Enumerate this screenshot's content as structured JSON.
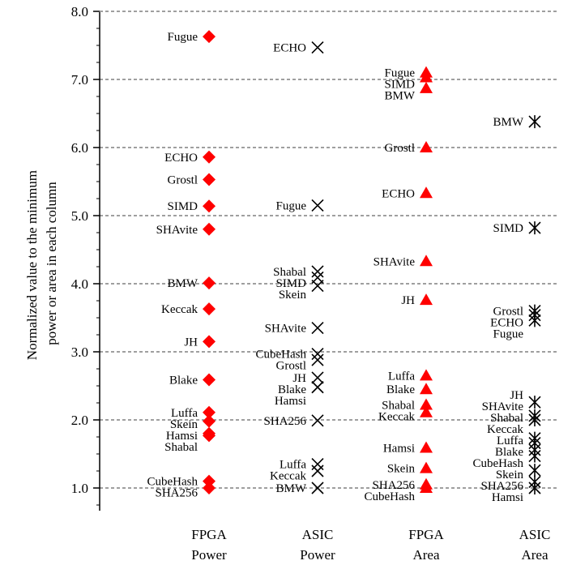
{
  "chart_data": {
    "type": "scatter",
    "title": "",
    "xlabel": "",
    "ylabel_lines": [
      "Normalized value to the minimum",
      "power or area in each column"
    ],
    "ylim": [
      0.75,
      8.0
    ],
    "yticks": [
      "1.0",
      "2.0",
      "3.0",
      "4.0",
      "5.0",
      "6.0",
      "7.0",
      "8.0"
    ],
    "grid": "horizontal dashed",
    "columns": [
      {
        "label_lines": [
          "FPGA",
          "Power"
        ],
        "marker": "diamond",
        "color": "#ff0000",
        "points": [
          {
            "name": "Fugue",
            "value": 7.63
          },
          {
            "name": "ECHO",
            "value": 5.86
          },
          {
            "name": "Grostl",
            "value": 5.53
          },
          {
            "name": "SIMD",
            "value": 5.14
          },
          {
            "name": "SHAvite",
            "value": 4.8
          },
          {
            "name": "BMW",
            "value": 4.01
          },
          {
            "name": "Keccak",
            "value": 3.63
          },
          {
            "name": "JH",
            "value": 3.15
          },
          {
            "name": "Blake",
            "value": 2.59
          },
          {
            "name": "Luffa",
            "value": 2.11
          },
          {
            "name": "Skein",
            "value": 1.98
          },
          {
            "name": "Hamsi",
            "value": 1.8
          },
          {
            "name": "Shabal",
            "value": 1.77
          },
          {
            "name": "CubeHash",
            "value": 1.1
          },
          {
            "name": "SHA256",
            "value": 1.0
          }
        ]
      },
      {
        "label_lines": [
          "ASIC",
          "Power"
        ],
        "marker": "x",
        "color": "#000000",
        "points": [
          {
            "name": "ECHO",
            "value": 7.47
          },
          {
            "name": "Fugue",
            "value": 5.15
          },
          {
            "name": "Shabal",
            "value": 4.18
          },
          {
            "name": "SIMD",
            "value": 4.09
          },
          {
            "name": "Skein",
            "value": 3.97
          },
          {
            "name": "SHAvite",
            "value": 3.35
          },
          {
            "name": "CubeHash",
            "value": 2.97
          },
          {
            "name": "Grostl",
            "value": 2.88
          },
          {
            "name": "JH",
            "value": 2.62
          },
          {
            "name": "Blake",
            "value": 2.48
          },
          {
            "name": "Hamsi",
            "value": 2.48
          },
          {
            "name": "SHA256",
            "value": 1.99
          },
          {
            "name": "Luffa",
            "value": 1.35
          },
          {
            "name": "Keccak",
            "value": 1.25
          },
          {
            "name": "BMW",
            "value": 1.0
          }
        ]
      },
      {
        "label_lines": [
          "FPGA",
          "Area"
        ],
        "marker": "triangle",
        "color": "#ff0000",
        "points": [
          {
            "name": "Fugue",
            "value": 7.1
          },
          {
            "name": "SIMD",
            "value": 7.03
          },
          {
            "name": "BMW",
            "value": 6.87
          },
          {
            "name": "Grostl",
            "value": 6.0
          },
          {
            "name": "ECHO",
            "value": 5.33
          },
          {
            "name": "SHAvite",
            "value": 4.33
          },
          {
            "name": "JH",
            "value": 3.76
          },
          {
            "name": "Luffa",
            "value": 2.65
          },
          {
            "name": "Blake",
            "value": 2.45
          },
          {
            "name": "Shabal",
            "value": 2.22
          },
          {
            "name": "Keccak",
            "value": 2.11
          },
          {
            "name": "Hamsi",
            "value": 1.59
          },
          {
            "name": "Skein",
            "value": 1.29
          },
          {
            "name": "SHA256",
            "value": 1.05
          },
          {
            "name": "CubeHash",
            "value": 1.0
          }
        ]
      },
      {
        "label_lines": [
          "ASIC",
          "Area"
        ],
        "marker": "asterisk",
        "color": "#000000",
        "points": [
          {
            "name": "BMW",
            "value": 6.38
          },
          {
            "name": "SIMD",
            "value": 4.82
          },
          {
            "name": "Grostl",
            "value": 3.6
          },
          {
            "name": "ECHO",
            "value": 3.54
          },
          {
            "name": "Fugue",
            "value": 3.46
          },
          {
            "name": "JH",
            "value": 2.26
          },
          {
            "name": "SHAvite",
            "value": 2.06
          },
          {
            "name": "Shabal",
            "value": 2.0
          },
          {
            "name": "Keccak",
            "value": 1.73
          },
          {
            "name": "Luffa",
            "value": 1.66
          },
          {
            "name": "Blake",
            "value": 1.56
          },
          {
            "name": "CubeHash",
            "value": 1.47
          },
          {
            "name": "Skein",
            "value": 1.26
          },
          {
            "name": "SHA256",
            "value": 1.09
          },
          {
            "name": "Hamsi",
            "value": 1.0
          }
        ]
      }
    ]
  }
}
